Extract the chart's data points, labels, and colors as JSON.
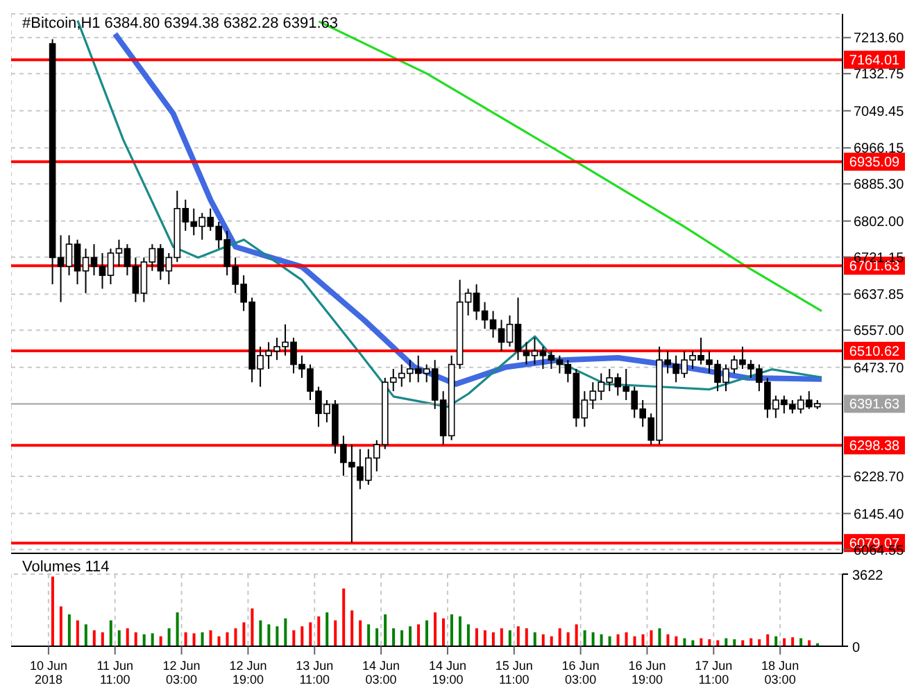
{
  "chart_data": [
    {
      "type": "candlestick",
      "title": "#Bitcoin,H1  6384.80 6394.38 6382.28 6391.63",
      "x": [
        "2018-06-10T20:00",
        "2018-06-10T22:00",
        "2018-06-11T00:00",
        "2018-06-11T02:00",
        "2018-06-11T04:00",
        "2018-06-11T06:00",
        "2018-06-11T08:00",
        "2018-06-11T10:00",
        "2018-06-11T12:00",
        "2018-06-11T14:00",
        "2018-06-11T16:00",
        "2018-06-11T18:00",
        "2018-06-11T20:00",
        "2018-06-11T22:00",
        "2018-06-12T00:00",
        "2018-06-12T02:00",
        "2018-06-12T04:00",
        "2018-06-12T06:00",
        "2018-06-12T08:00",
        "2018-06-12T10:00",
        "2018-06-12T12:00",
        "2018-06-12T14:00",
        "2018-06-12T16:00",
        "2018-06-12T18:00",
        "2018-06-12T20:00",
        "2018-06-12T22:00",
        "2018-06-13T00:00",
        "2018-06-13T02:00",
        "2018-06-13T04:00",
        "2018-06-13T06:00",
        "2018-06-13T08:00",
        "2018-06-13T10:00",
        "2018-06-13T12:00",
        "2018-06-13T14:00",
        "2018-06-13T16:00",
        "2018-06-13T18:00",
        "2018-06-13T20:00",
        "2018-06-13T22:00",
        "2018-06-14T00:00",
        "2018-06-14T02:00",
        "2018-06-14T04:00",
        "2018-06-14T06:00",
        "2018-06-14T08:00",
        "2018-06-14T10:00",
        "2018-06-14T12:00",
        "2018-06-14T14:00",
        "2018-06-14T16:00",
        "2018-06-14T18:00",
        "2018-06-14T20:00",
        "2018-06-14T22:00",
        "2018-06-15T00:00",
        "2018-06-15T02:00",
        "2018-06-15T04:00",
        "2018-06-15T06:00",
        "2018-06-15T08:00",
        "2018-06-15T10:00",
        "2018-06-15T12:00",
        "2018-06-15T14:00",
        "2018-06-15T16:00",
        "2018-06-15T18:00",
        "2018-06-15T20:00",
        "2018-06-15T22:00",
        "2018-06-16T00:00",
        "2018-06-16T02:00",
        "2018-06-16T04:00",
        "2018-06-16T06:00",
        "2018-06-16T08:00",
        "2018-06-16T10:00",
        "2018-06-16T12:00",
        "2018-06-16T14:00",
        "2018-06-16T16:00",
        "2018-06-16T18:00",
        "2018-06-16T20:00",
        "2018-06-16T22:00",
        "2018-06-17T00:00",
        "2018-06-17T02:00",
        "2018-06-17T04:00",
        "2018-06-17T06:00",
        "2018-06-17T08:00",
        "2018-06-17T10:00",
        "2018-06-17T12:00",
        "2018-06-17T14:00",
        "2018-06-17T16:00",
        "2018-06-17T18:00",
        "2018-06-17T20:00",
        "2018-06-17T22:00",
        "2018-06-18T00:00",
        "2018-06-18T02:00",
        "2018-06-18T04:00",
        "2018-06-18T06:00",
        "2018-06-18T08:00",
        "2018-06-18T10:00",
        "2018-06-18T12:00"
      ],
      "ohlc": [
        [
          7200,
          7210,
          6660,
          6720
        ],
        [
          6720,
          6770,
          6620,
          6700
        ],
        [
          6700,
          6770,
          6680,
          6750
        ],
        [
          6750,
          6760,
          6660,
          6690
        ],
        [
          6690,
          6740,
          6640,
          6720
        ],
        [
          6720,
          6750,
          6680,
          6700
        ],
        [
          6700,
          6730,
          6650,
          6680
        ],
        [
          6680,
          6740,
          6660,
          6730
        ],
        [
          6730,
          6760,
          6700,
          6740
        ],
        [
          6740,
          6750,
          6680,
          6700
        ],
        [
          6700,
          6720,
          6620,
          6640
        ],
        [
          6640,
          6720,
          6620,
          6710
        ],
        [
          6710,
          6750,
          6690,
          6740
        ],
        [
          6740,
          6750,
          6670,
          6690
        ],
        [
          6690,
          6730,
          6660,
          6720
        ],
        [
          6720,
          6870,
          6710,
          6830
        ],
        [
          6830,
          6850,
          6780,
          6800
        ],
        [
          6800,
          6830,
          6770,
          6790
        ],
        [
          6790,
          6820,
          6760,
          6810
        ],
        [
          6810,
          6830,
          6780,
          6790
        ],
        [
          6790,
          6800,
          6740,
          6760
        ],
        [
          6760,
          6780,
          6680,
          6700
        ],
        [
          6700,
          6720,
          6640,
          6660
        ],
        [
          6660,
          6680,
          6600,
          6620
        ],
        [
          6620,
          6630,
          6440,
          6470
        ],
        [
          6470,
          6520,
          6430,
          6500
        ],
        [
          6500,
          6530,
          6470,
          6510
        ],
        [
          6510,
          6540,
          6490,
          6520
        ],
        [
          6520,
          6570,
          6500,
          6530
        ],
        [
          6530,
          6540,
          6460,
          6480
        ],
        [
          6480,
          6500,
          6450,
          6470
        ],
        [
          6470,
          6480,
          6400,
          6420
        ],
        [
          6420,
          6430,
          6340,
          6370
        ],
        [
          6370,
          6400,
          6350,
          6390
        ],
        [
          6390,
          6400,
          6280,
          6300
        ],
        [
          6300,
          6320,
          6230,
          6260
        ],
        [
          6260,
          6300,
          6080,
          6250
        ],
        [
          6250,
          6290,
          6200,
          6220
        ],
        [
          6220,
          6290,
          6210,
          6270
        ],
        [
          6270,
          6310,
          6240,
          6300
        ],
        [
          6300,
          6450,
          6290,
          6440
        ],
        [
          6440,
          6470,
          6420,
          6450
        ],
        [
          6450,
          6480,
          6430,
          6460
        ],
        [
          6460,
          6490,
          6440,
          6470
        ],
        [
          6470,
          6500,
          6440,
          6460
        ],
        [
          6460,
          6480,
          6440,
          6470
        ],
        [
          6470,
          6490,
          6380,
          6400
        ],
        [
          6400,
          6420,
          6300,
          6320
        ],
        [
          6320,
          6500,
          6310,
          6480
        ],
        [
          6480,
          6670,
          6470,
          6620
        ],
        [
          6620,
          6650,
          6590,
          6640
        ],
        [
          6640,
          6660,
          6580,
          6600
        ],
        [
          6600,
          6620,
          6560,
          6580
        ],
        [
          6580,
          6600,
          6540,
          6560
        ],
        [
          6560,
          6580,
          6510,
          6530
        ],
        [
          6530,
          6590,
          6520,
          6570
        ],
        [
          6570,
          6630,
          6490,
          6510
        ],
        [
          6510,
          6530,
          6480,
          6500
        ],
        [
          6500,
          6540,
          6480,
          6510
        ],
        [
          6510,
          6520,
          6470,
          6500
        ],
        [
          6500,
          6510,
          6470,
          6490
        ],
        [
          6490,
          6500,
          6460,
          6480
        ],
        [
          6480,
          6490,
          6440,
          6460
        ],
        [
          6460,
          6470,
          6340,
          6360
        ],
        [
          6360,
          6420,
          6340,
          6400
        ],
        [
          6400,
          6440,
          6380,
          6420
        ],
        [
          6420,
          6460,
          6400,
          6440
        ],
        [
          6440,
          6470,
          6420,
          6450
        ],
        [
          6450,
          6460,
          6410,
          6430
        ],
        [
          6430,
          6470,
          6400,
          6420
        ],
        [
          6420,
          6430,
          6360,
          6380
        ],
        [
          6380,
          6400,
          6340,
          6360
        ],
        [
          6360,
          6370,
          6300,
          6310
        ],
        [
          6310,
          6520,
          6300,
          6490
        ],
        [
          6490,
          6510,
          6460,
          6480
        ],
        [
          6480,
          6500,
          6440,
          6460
        ],
        [
          6460,
          6510,
          6450,
          6490
        ],
        [
          6490,
          6510,
          6470,
          6500
        ],
        [
          6500,
          6540,
          6480,
          6490
        ],
        [
          6490,
          6510,
          6460,
          6480
        ],
        [
          6480,
          6490,
          6420,
          6440
        ],
        [
          6440,
          6480,
          6420,
          6470
        ],
        [
          6470,
          6500,
          6460,
          6490
        ],
        [
          6490,
          6520,
          6470,
          6480
        ],
        [
          6480,
          6490,
          6450,
          6470
        ],
        [
          6470,
          6480,
          6420,
          6440
        ],
        [
          6440,
          6450,
          6360,
          6380
        ],
        [
          6380,
          6410,
          6360,
          6400
        ],
        [
          6400,
          6410,
          6370,
          6390
        ],
        [
          6390,
          6400,
          6370,
          6380
        ],
        [
          6380,
          6410,
          6370,
          6400
        ],
        [
          6400,
          6420,
          6380,
          6385
        ],
        [
          6385,
          6400,
          6380,
          6392
        ]
      ],
      "series": [
        {
          "type": "line",
          "color": "#4169e1",
          "x": [
            "2018-06-11T11:00",
            "2018-06-12T01:00",
            "2018-06-12T10:00",
            "2018-06-12T16:00",
            "2018-06-13T08:00",
            "2018-06-13T23:00",
            "2018-06-14T11:00",
            "2018-06-14T21:00",
            "2018-06-15T09:00",
            "2018-06-15T21:00",
            "2018-06-16T12:00",
            "2018-06-17T04:00",
            "2018-06-17T19:00",
            "2018-06-18T13:00"
          ],
          "values": [
            7222,
            7043,
            6849,
            6744,
            6699,
            6579,
            6474,
            6436,
            6474,
            6489,
            6495,
            6474,
            6450,
            6447
          ]
        },
        {
          "type": "line",
          "color": "#1a8a8a",
          "x": [
            "2018-06-11T02:00",
            "2018-06-11T13:00",
            "2018-06-12T01:00",
            "2018-06-12T07:00",
            "2018-06-12T18:00",
            "2018-06-13T08:00",
            "2018-06-13T22:00",
            "2018-06-14T06:00",
            "2018-06-14T19:00",
            "2018-06-15T00:00",
            "2018-06-15T16:00",
            "2018-06-15T21:00",
            "2018-06-16T09:00",
            "2018-06-16T22:00",
            "2018-06-17T10:00",
            "2018-06-18T01:00",
            "2018-06-18T13:00"
          ],
          "values": [
            7252,
            6984,
            6744,
            6720,
            6760,
            6669,
            6504,
            6408,
            6385,
            6414,
            6543,
            6489,
            6436,
            6430,
            6424,
            6469,
            6451
          ]
        },
        {
          "type": "line",
          "color": "#22dd22",
          "x": [
            "2018-06-13T12:00",
            "2018-06-14T14:00",
            "2018-06-16T03:00",
            "2018-06-17T04:00",
            "2018-06-17T19:00",
            "2018-06-18T13:00"
          ],
          "values": [
            7250,
            7133,
            6929,
            6789,
            6699,
            6600
          ]
        }
      ],
      "xlim": [
        "2018-06-10T10:00",
        "2018-06-18T18:00"
      ],
      "xticks": [
        {
          "value": "2018-06-10T19:00",
          "label": null
        },
        {
          "value": "2018-06-11T11:00",
          "label": null
        },
        {
          "value": "2018-06-12T03:00",
          "label": null
        },
        {
          "value": "2018-06-12T19:00",
          "label": null
        },
        {
          "value": "2018-06-13T11:00",
          "label": null
        },
        {
          "value": "2018-06-14T03:00",
          "label": null
        },
        {
          "value": "2018-06-14T19:00",
          "label": null
        },
        {
          "value": "2018-06-15T11:00",
          "label": null
        },
        {
          "value": "2018-06-16T03:00",
          "label": null
        },
        {
          "value": "2018-06-16T19:00",
          "label": null
        },
        {
          "value": "2018-06-17T11:00",
          "label": null
        },
        {
          "value": "2018-06-18T03:00",
          "label": null
        }
      ],
      "ylim": [
        6056,
        7267
      ],
      "yticks": [
        {
          "value": 7213.6,
          "label": "7213.60"
        },
        {
          "value": 7132.75,
          "label": "7132.75"
        },
        {
          "value": 7049.45,
          "label": "7049.45"
        },
        {
          "value": 6966.15,
          "label": "6966.15"
        },
        {
          "value": 6885.3,
          "label": "6885.30"
        },
        {
          "value": 6802,
          "label": "6802.00"
        },
        {
          "value": 6721.15,
          "label": "6721.15"
        },
        {
          "value": 6637.85,
          "label": "6637.85"
        },
        {
          "value": 6557,
          "label": "6557.00"
        },
        {
          "value": 6473.7,
          "label": "6473.70"
        },
        {
          "value": 6228.7,
          "label": "6228.70"
        },
        {
          "value": 6145.4,
          "label": "6145.40"
        },
        {
          "value": 6064.55,
          "label": "6064.55"
        }
      ],
      "ref_lines": [
        {
          "axis": "y",
          "value": 7164.01,
          "label": "7164.01",
          "color": "#ff0000"
        },
        {
          "axis": "y",
          "value": 6935.09,
          "label": "6935.09",
          "color": "#ff0000"
        },
        {
          "axis": "y",
          "value": 6701.63,
          "label": "6701.63",
          "color": "#ff0000"
        },
        {
          "axis": "y",
          "value": 6510.62,
          "label": "6510.62",
          "color": "#ff0000"
        },
        {
          "axis": "y",
          "value": 6391.63,
          "label": "6391.63",
          "color": "#a0a0a0"
        },
        {
          "axis": "y",
          "value": 6298.38,
          "label": "6298.38",
          "color": "#ff0000"
        },
        {
          "axis": "y",
          "value": 6079.07,
          "label": "6079.07",
          "color": "#ff0000"
        }
      ],
      "grid": true,
      "tick_labels": "y"
    },
    {
      "type": "bar",
      "title": "Volumes 114",
      "x": [
        "2018-06-10T20:00",
        "2018-06-10T22:00",
        "2018-06-11T00:00",
        "2018-06-11T02:00",
        "2018-06-11T04:00",
        "2018-06-11T06:00",
        "2018-06-11T08:00",
        "2018-06-11T10:00",
        "2018-06-11T12:00",
        "2018-06-11T14:00",
        "2018-06-11T16:00",
        "2018-06-11T18:00",
        "2018-06-11T20:00",
        "2018-06-11T22:00",
        "2018-06-12T00:00",
        "2018-06-12T02:00",
        "2018-06-12T04:00",
        "2018-06-12T06:00",
        "2018-06-12T08:00",
        "2018-06-12T10:00",
        "2018-06-12T12:00",
        "2018-06-12T14:00",
        "2018-06-12T16:00",
        "2018-06-12T18:00",
        "2018-06-12T20:00",
        "2018-06-12T22:00",
        "2018-06-13T00:00",
        "2018-06-13T02:00",
        "2018-06-13T04:00",
        "2018-06-13T06:00",
        "2018-06-13T08:00",
        "2018-06-13T10:00",
        "2018-06-13T12:00",
        "2018-06-13T14:00",
        "2018-06-13T16:00",
        "2018-06-13T18:00",
        "2018-06-13T20:00",
        "2018-06-13T22:00",
        "2018-06-14T00:00",
        "2018-06-14T02:00",
        "2018-06-14T04:00",
        "2018-06-14T06:00",
        "2018-06-14T08:00",
        "2018-06-14T10:00",
        "2018-06-14T12:00",
        "2018-06-14T14:00",
        "2018-06-14T16:00",
        "2018-06-14T18:00",
        "2018-06-14T20:00",
        "2018-06-14T22:00",
        "2018-06-15T00:00",
        "2018-06-15T02:00",
        "2018-06-15T04:00",
        "2018-06-15T06:00",
        "2018-06-15T08:00",
        "2018-06-15T10:00",
        "2018-06-15T12:00",
        "2018-06-15T14:00",
        "2018-06-15T16:00",
        "2018-06-15T18:00",
        "2018-06-15T20:00",
        "2018-06-15T22:00",
        "2018-06-16T00:00",
        "2018-06-16T02:00",
        "2018-06-16T04:00",
        "2018-06-16T06:00",
        "2018-06-16T08:00",
        "2018-06-16T10:00",
        "2018-06-16T12:00",
        "2018-06-16T14:00",
        "2018-06-16T16:00",
        "2018-06-16T18:00",
        "2018-06-16T20:00",
        "2018-06-16T22:00",
        "2018-06-17T00:00",
        "2018-06-17T02:00",
        "2018-06-17T04:00",
        "2018-06-17T06:00",
        "2018-06-17T08:00",
        "2018-06-17T10:00",
        "2018-06-17T12:00",
        "2018-06-17T14:00",
        "2018-06-17T16:00",
        "2018-06-17T18:00",
        "2018-06-17T20:00",
        "2018-06-17T22:00",
        "2018-06-18T00:00",
        "2018-06-18T02:00",
        "2018-06-18T04:00",
        "2018-06-18T06:00",
        "2018-06-18T08:00",
        "2018-06-18T10:00",
        "2018-06-18T12:00"
      ],
      "values": [
        3500,
        2000,
        1600,
        1300,
        1100,
        800,
        700,
        1300,
        800,
        900,
        700,
        600,
        650,
        500,
        900,
        1700,
        700,
        650,
        700,
        800,
        500,
        700,
        900,
        1200,
        1900,
        1300,
        1100,
        1000,
        1400,
        800,
        1000,
        1200,
        1500,
        1700,
        1300,
        2900,
        1800,
        1300,
        1100,
        900,
        1600,
        900,
        800,
        1000,
        1100,
        1300,
        1700,
        1400,
        1600,
        1500,
        1100,
        900,
        800,
        700,
        900,
        800,
        1000,
        900,
        700,
        600,
        500,
        900,
        700,
        1100,
        800,
        700,
        600,
        500,
        600,
        700,
        500,
        600,
        800,
        900,
        600,
        500,
        400,
        300,
        400,
        350,
        300,
        400,
        350,
        300,
        400,
        350,
        600,
        500,
        400,
        450,
        400,
        300,
        150
      ],
      "colors": [
        "#ff0000",
        "#ff0000",
        "#008000",
        "#ff0000",
        "#008000",
        "#ff0000",
        "#ff0000",
        "#008000",
        "#008000",
        "#ff0000",
        "#ff0000",
        "#008000",
        "#008000",
        "#ff0000",
        "#008000",
        "#008000",
        "#ff0000",
        "#ff0000",
        "#008000",
        "#ff0000",
        "#ff0000",
        "#ff0000",
        "#ff0000",
        "#ff0000",
        "#ff0000",
        "#008000",
        "#008000",
        "#008000",
        "#008000",
        "#ff0000",
        "#ff0000",
        "#ff0000",
        "#ff0000",
        "#008000",
        "#ff0000",
        "#ff0000",
        "#ff0000",
        "#ff0000",
        "#008000",
        "#008000",
        "#008000",
        "#008000",
        "#008000",
        "#008000",
        "#ff0000",
        "#008000",
        "#ff0000",
        "#ff0000",
        "#008000",
        "#008000",
        "#008000",
        "#ff0000",
        "#ff0000",
        "#ff0000",
        "#ff0000",
        "#008000",
        "#ff0000",
        "#ff0000",
        "#008000",
        "#ff0000",
        "#ff0000",
        "#ff0000",
        "#ff0000",
        "#ff0000",
        "#008000",
        "#008000",
        "#008000",
        "#008000",
        "#ff0000",
        "#ff0000",
        "#ff0000",
        "#ff0000",
        "#ff0000",
        "#008000",
        "#ff0000",
        "#ff0000",
        "#008000",
        "#008000",
        "#ff0000",
        "#ff0000",
        "#ff0000",
        "#008000",
        "#008000",
        "#ff0000",
        "#ff0000",
        "#ff0000",
        "#ff0000",
        "#008000",
        "#ff0000",
        "#ff0000",
        "#008000",
        "#ff0000",
        "#008000"
      ],
      "xlim": [
        "2018-06-10T10:00",
        "2018-06-18T18:00"
      ],
      "xticks": [
        {
          "value": "2018-06-10T19:00",
          "label": "10 Jun 2018"
        },
        {
          "value": "2018-06-11T11:00",
          "label": "11 Jun 11:00"
        },
        {
          "value": "2018-06-12T03:00",
          "label": "12 Jun 03:00"
        },
        {
          "value": "2018-06-12T19:00",
          "label": "12 Jun 19:00"
        },
        {
          "value": "2018-06-13T11:00",
          "label": "13 Jun 11:00"
        },
        {
          "value": "2018-06-14T03:00",
          "label": "14 Jun 03:00"
        },
        {
          "value": "2018-06-14T19:00",
          "label": "14 Jun 19:00"
        },
        {
          "value": "2018-06-15T11:00",
          "label": "15 Jun 11:00"
        },
        {
          "value": "2018-06-16T03:00",
          "label": "16 Jun 03:00"
        },
        {
          "value": "2018-06-16T19:00",
          "label": "16 Jun 19:00"
        },
        {
          "value": "2018-06-17T11:00",
          "label": "17 Jun 11:00"
        },
        {
          "value": "2018-06-18T03:00",
          "label": "18 Jun 03:00"
        }
      ],
      "ylim": [
        0,
        3622
      ],
      "yticks": [
        0,
        3622
      ],
      "grid": true
    }
  ]
}
